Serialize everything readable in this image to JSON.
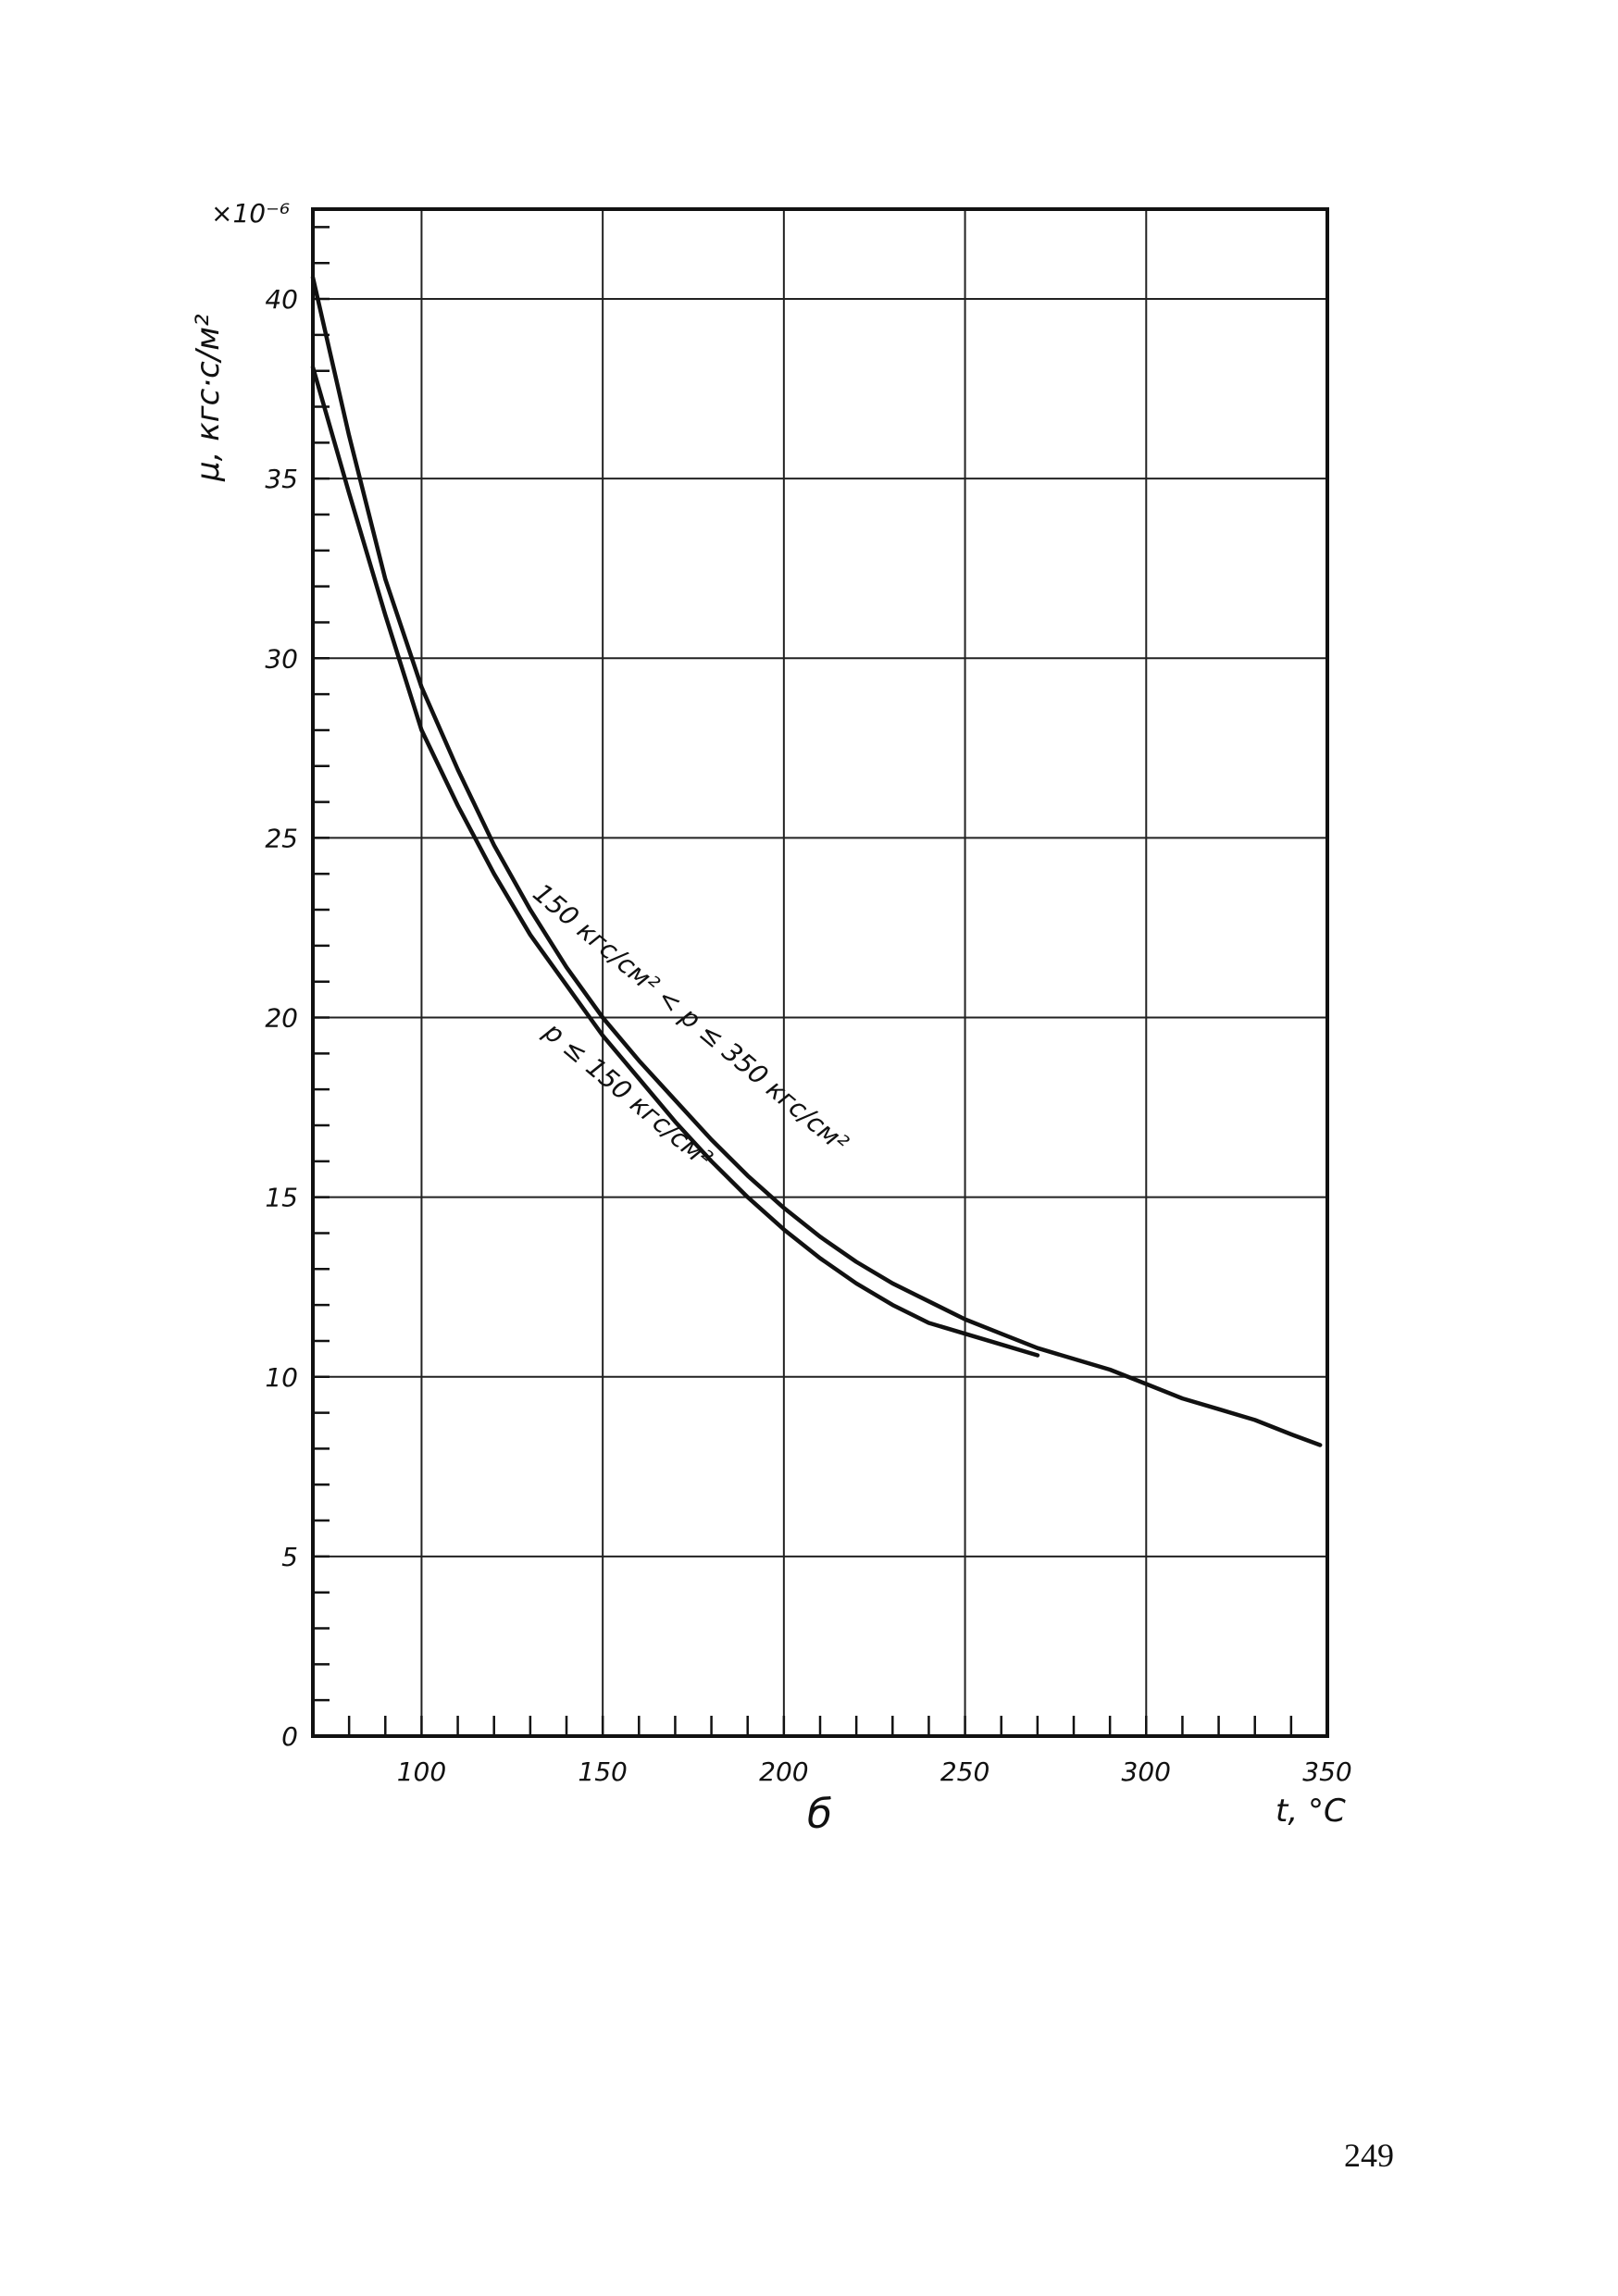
{
  "page": {
    "number": "249"
  },
  "chart_data": {
    "type": "line",
    "figure_label": "б",
    "xlabel": "t, °C",
    "ylabel": "μ, кгс·с/м²",
    "y_multiplier": "×10⁻⁶",
    "xlim": [
      70,
      350
    ],
    "ylim": [
      0,
      42.5
    ],
    "x_ticks": [
      100,
      150,
      200,
      250,
      300,
      350
    ],
    "y_ticks": [
      0,
      5,
      10,
      15,
      20,
      25,
      30,
      35,
      40
    ],
    "grid": true,
    "series": [
      {
        "name": "150 кгс/см² < p ≤ 350 кгс/см²",
        "x": [
          70,
          80,
          90,
          100,
          110,
          120,
          130,
          140,
          150,
          160,
          170,
          180,
          190,
          200,
          210,
          220,
          230,
          240,
          250,
          260,
          270,
          280,
          290,
          300,
          310,
          320,
          330,
          340,
          348
        ],
        "y": [
          40.6,
          36.2,
          32.2,
          29.2,
          26.9,
          24.8,
          23.0,
          21.4,
          20.0,
          18.8,
          17.7,
          16.6,
          15.6,
          14.7,
          13.9,
          13.2,
          12.6,
          12.1,
          11.6,
          11.2,
          10.8,
          10.5,
          10.2,
          9.8,
          9.4,
          9.1,
          8.8,
          8.4,
          8.1
        ]
      },
      {
        "name": "p ≤ 150 кгс/см²",
        "x": [
          70,
          80,
          90,
          100,
          110,
          120,
          130,
          140,
          150,
          160,
          170,
          180,
          190,
          200,
          210,
          220,
          230,
          240,
          250,
          260,
          270
        ],
        "y": [
          38.1,
          34.6,
          31.2,
          28.0,
          25.9,
          24.0,
          22.3,
          20.9,
          19.5,
          18.3,
          17.1,
          16.0,
          15.0,
          14.1,
          13.3,
          12.6,
          12.0,
          11.5,
          11.2,
          10.9,
          10.6
        ]
      }
    ],
    "annotations": [
      {
        "text": "150 кгс/см² < p ≤ 350 кгс/см²",
        "series": 0
      },
      {
        "text": "p ≤ 150 кгс/см²",
        "series": 1
      }
    ]
  }
}
